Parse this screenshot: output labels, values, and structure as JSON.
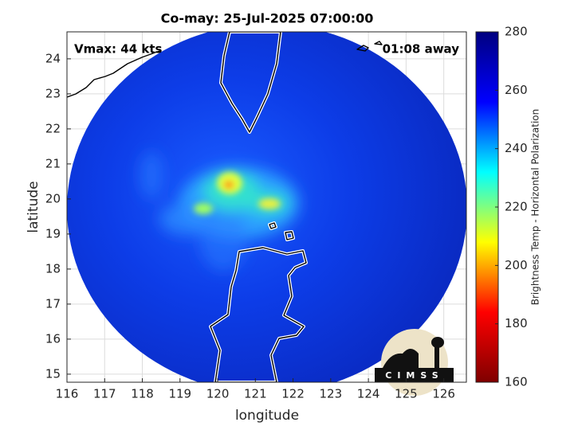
{
  "chart_data": {
    "type": "swath-map",
    "title": "Co-may: 25-Jul-2025 07:00:00",
    "xlabel": "longitude",
    "ylabel": "latitude",
    "xlim": [
      116,
      126.6
    ],
    "ylim": [
      14.77,
      24.77
    ],
    "xticks": [
      116,
      117,
      118,
      119,
      120,
      121,
      122,
      123,
      124,
      125,
      126
    ],
    "yticks": [
      15,
      16,
      17,
      18,
      19,
      20,
      21,
      22,
      23,
      24
    ],
    "grid": true,
    "annotations": [
      "Vmax: 44 kts",
      "01:08 away"
    ],
    "colorbar": {
      "label": "Brightness Temp - Horizontal Polarization",
      "lim": [
        160,
        280
      ],
      "ticks": [
        160,
        180,
        200,
        220,
        240,
        260,
        280
      ],
      "colors": [
        "#7f0000",
        "#ff0000",
        "#ffff00",
        "#00ffff",
        "#0000ff",
        "#00007f"
      ]
    },
    "logo": "CIMSS"
  }
}
